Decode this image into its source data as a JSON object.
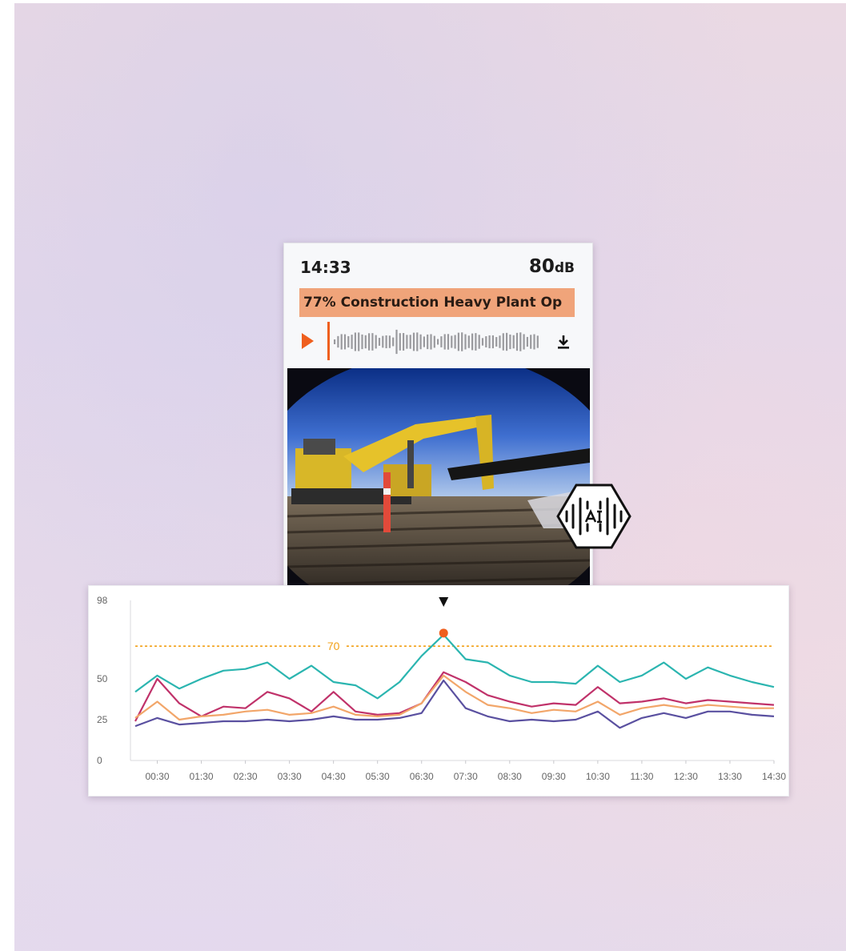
{
  "popup": {
    "time": "14:33",
    "level_value": "80",
    "level_unit": "dB",
    "classification": "77% Construction Heavy Plant Op",
    "playhead_fraction": 0.0,
    "icons": {
      "play": "play-icon",
      "download": "download-icon",
      "ai": "ai-audio-icon"
    },
    "accent_color": "#ef5f1e",
    "banner_color": "#f0a47a"
  },
  "chart_data": {
    "type": "line",
    "x": [
      "00:00",
      "00:30",
      "01:00",
      "01:30",
      "02:00",
      "02:30",
      "03:00",
      "03:30",
      "04:00",
      "04:30",
      "05:00",
      "05:30",
      "06:00",
      "06:30",
      "07:00",
      "07:30",
      "08:00",
      "08:30",
      "09:00",
      "09:30",
      "10:00",
      "10:30",
      "11:00",
      "11:30",
      "12:00",
      "12:30",
      "13:00",
      "13:30",
      "14:00",
      "14:30"
    ],
    "x_tick_labels": [
      "00:30",
      "01:30",
      "02:30",
      "03:30",
      "04:30",
      "05:30",
      "06:30",
      "07:30",
      "08:30",
      "09:30",
      "10:30",
      "11:30",
      "12:30",
      "13:30",
      "14:30"
    ],
    "y_tick_labels": [
      "0",
      "25",
      "50",
      "98"
    ],
    "ylim": [
      0,
      98
    ],
    "threshold": {
      "value": 70,
      "label": "70",
      "color": "#f2a118"
    },
    "marker": {
      "x": "07:00",
      "y": 78,
      "color": "#ef5f1e"
    },
    "series": [
      {
        "color": "#2bb5b0",
        "values": [
          42,
          52,
          44,
          50,
          55,
          56,
          60,
          50,
          58,
          48,
          46,
          38,
          48,
          64,
          77,
          62,
          60,
          52,
          48,
          48,
          47,
          58,
          48,
          52,
          60,
          50,
          57,
          52,
          48,
          45
        ]
      },
      {
        "color": "#c0326a",
        "values": [
          24,
          50,
          35,
          27,
          33,
          32,
          42,
          38,
          30,
          42,
          30,
          28,
          29,
          35,
          54,
          48,
          40,
          36,
          33,
          35,
          34,
          45,
          35,
          36,
          38,
          35,
          37,
          36,
          35,
          34
        ]
      },
      {
        "color": "#f2a66a",
        "values": [
          26,
          36,
          25,
          27,
          28,
          30,
          31,
          28,
          29,
          33,
          28,
          27,
          28,
          35,
          52,
          42,
          34,
          32,
          29,
          31,
          30,
          36,
          28,
          32,
          34,
          32,
          34,
          33,
          32,
          32
        ]
      },
      {
        "color": "#5a50a0",
        "values": [
          21,
          26,
          22,
          23,
          24,
          24,
          25,
          24,
          25,
          27,
          25,
          25,
          26,
          29,
          49,
          32,
          27,
          24,
          25,
          24,
          25,
          30,
          20,
          26,
          29,
          26,
          30,
          30,
          28,
          27
        ]
      }
    ],
    "grid": false
  }
}
